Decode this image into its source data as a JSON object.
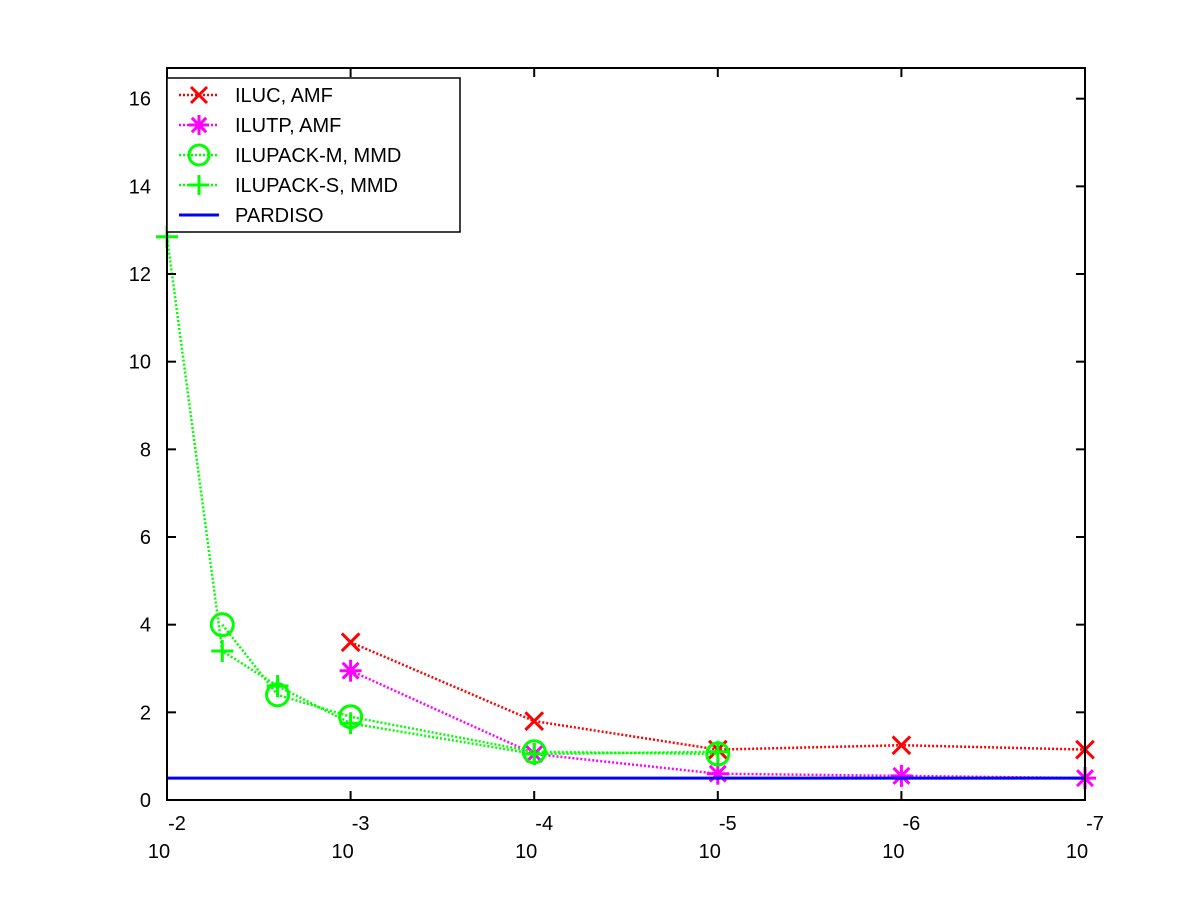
{
  "chart_data": {
    "type": "line",
    "title": "",
    "xlabel": "",
    "ylabel": "",
    "x_scale": "log",
    "x_reversed": true,
    "xlim": [
      0.01,
      1e-07
    ],
    "ylim": [
      0,
      16.7
    ],
    "xticks": [
      {
        "value": 0.01,
        "base": "10",
        "exp": "-2"
      },
      {
        "value": 0.001,
        "base": "10",
        "exp": "-3"
      },
      {
        "value": 0.0001,
        "base": "10",
        "exp": "-4"
      },
      {
        "value": 1e-05,
        "base": "10",
        "exp": "-5"
      },
      {
        "value": 1e-06,
        "base": "10",
        "exp": "-6"
      },
      {
        "value": 1e-07,
        "base": "10",
        "exp": "-7"
      }
    ],
    "yticks": [
      0,
      2,
      4,
      6,
      8,
      10,
      12,
      14,
      16
    ],
    "grid": false,
    "legend_position": "top-left",
    "series": [
      {
        "name": "ILUC, AMF",
        "color": "#ff0000",
        "marker": "x",
        "line": "dotted",
        "x": [
          0.001,
          0.0001,
          1e-05,
          1e-06,
          1e-07
        ],
        "y": [
          3.6,
          1.8,
          1.15,
          1.25,
          1.15
        ]
      },
      {
        "name": "ILUTP, AMF",
        "color": "#ff00ff",
        "marker": "star",
        "line": "dotted",
        "x": [
          0.001,
          0.0001,
          1e-05,
          1e-06,
          1e-07
        ],
        "y": [
          2.95,
          1.05,
          0.6,
          0.55,
          0.5
        ]
      },
      {
        "name": "ILUPACK-M, MMD",
        "color": "#00ff00",
        "marker": "circle",
        "line": "dotted",
        "x": [
          0.005,
          0.0025,
          0.001,
          0.0001,
          1e-05
        ],
        "y": [
          4.0,
          2.4,
          1.9,
          1.1,
          1.05
        ]
      },
      {
        "name": "ILUPACK-S, MMD",
        "color": "#00ff00",
        "marker": "plus",
        "line": "dotted",
        "x": [
          0.01,
          0.005,
          0.0025,
          0.001,
          0.0001,
          1e-05
        ],
        "y": [
          12.85,
          3.4,
          2.6,
          1.75,
          1.05,
          1.1
        ]
      },
      {
        "name": "PARDISO",
        "color": "#0000ff",
        "marker": "none",
        "line": "solid",
        "x": [
          0.01,
          1e-07
        ],
        "y": [
          0.5,
          0.5
        ]
      }
    ]
  }
}
